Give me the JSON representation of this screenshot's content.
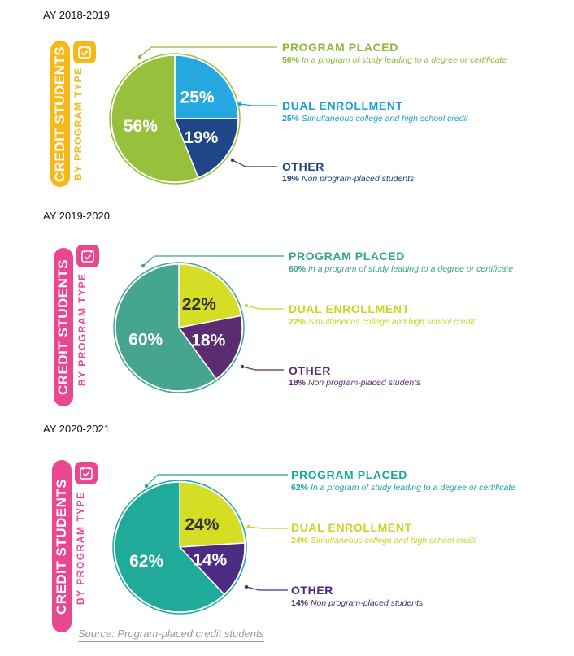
{
  "panels": [
    {
      "year": "AY 2018-2019",
      "tab_title": "CREDIT STUDENTS",
      "tab_subtitle": "BY PROGRAM TYPE",
      "tab_color": "#f5b91a",
      "sub_color": "#f5b91a",
      "calendar_icon": "calendar-check-icon",
      "labels": [
        {
          "title": "PROGRAM PLACED",
          "pct": "56%",
          "desc": "In a program of study leading to a degree or certificate",
          "color": "#8fb83a"
        },
        {
          "title": "DUAL ENROLLMENT",
          "pct": "25%",
          "desc": "Simultaneous college and high school credit",
          "color": "#1f9fd8"
        },
        {
          "title": "OTHER",
          "pct": "19%",
          "desc": "Non program-placed students",
          "color": "#1f3f7a"
        }
      ]
    },
    {
      "year": "AY 2019-2020",
      "tab_title": "CREDIT STUDENTS",
      "tab_subtitle": "BY PROGRAM TYPE",
      "tab_color": "#e9478f",
      "sub_color": "#e9478f",
      "calendar_icon": "calendar-check-icon",
      "labels": [
        {
          "title": "PROGRAM PLACED",
          "pct": "60%",
          "desc": "In a program of study leading to a degree or certificate",
          "color": "#3aa38f"
        },
        {
          "title": "DUAL ENROLLMENT",
          "pct": "22%",
          "desc": "Simultaneous college and high school credit",
          "color": "#c9d424"
        },
        {
          "title": "OTHER",
          "pct": "18%",
          "desc": "Non program-placed students",
          "color": "#5a2d6e"
        }
      ]
    },
    {
      "year": "AY 2020-2021",
      "tab_title": "CREDIT STUDENTS",
      "tab_subtitle": "BY PROGRAM TYPE",
      "tab_color": "#e9478f",
      "sub_color": "#e9478f",
      "calendar_icon": "calendar-check-icon",
      "labels": [
        {
          "title": "PROGRAM PLACED",
          "pct": "62%",
          "desc": "In a program of study leading to a degree or certificate",
          "color": "#1aa898"
        },
        {
          "title": "DUAL ENROLLMENT",
          "pct": "24%",
          "desc": "Simultaneous college and high school credit",
          "color": "#c9d424"
        },
        {
          "title": "OTHER",
          "pct": "14%",
          "desc": "Non program-placed students",
          "color": "#4a2a7a"
        }
      ]
    }
  ],
  "source": "Source: Program-placed credit students",
  "chart_data": [
    {
      "type": "pie",
      "title": "AY 2018-2019",
      "categories": [
        "PROGRAM PLACED",
        "DUAL ENROLLMENT",
        "OTHER"
      ],
      "values": [
        56,
        25,
        19
      ],
      "labels": [
        "56%",
        "25%",
        "19%"
      ],
      "colors": [
        "#97c03c",
        "#25a8e0",
        "#1f4687"
      ],
      "label_colors": [
        "#ffffff",
        "#ffffff",
        "#ffffff"
      ]
    },
    {
      "type": "pie",
      "title": "AY 2019-2020",
      "categories": [
        "PROGRAM PLACED",
        "DUAL ENROLLMENT",
        "OTHER"
      ],
      "values": [
        60,
        22,
        18
      ],
      "labels": [
        "60%",
        "22%",
        "18%"
      ],
      "colors": [
        "#45a58f",
        "#d5dd25",
        "#5b2c6f"
      ],
      "label_colors": [
        "#ffffff",
        "#333333",
        "#ffffff"
      ]
    },
    {
      "type": "pie",
      "title": "AY 2020-2021",
      "categories": [
        "PROGRAM PLACED",
        "DUAL ENROLLMENT",
        "OTHER"
      ],
      "values": [
        62,
        24,
        14
      ],
      "labels": [
        "62%",
        "24%",
        "14%"
      ],
      "colors": [
        "#1faa9a",
        "#d5dd25",
        "#4b2c82"
      ],
      "label_colors": [
        "#ffffff",
        "#333333",
        "#ffffff"
      ]
    }
  ]
}
